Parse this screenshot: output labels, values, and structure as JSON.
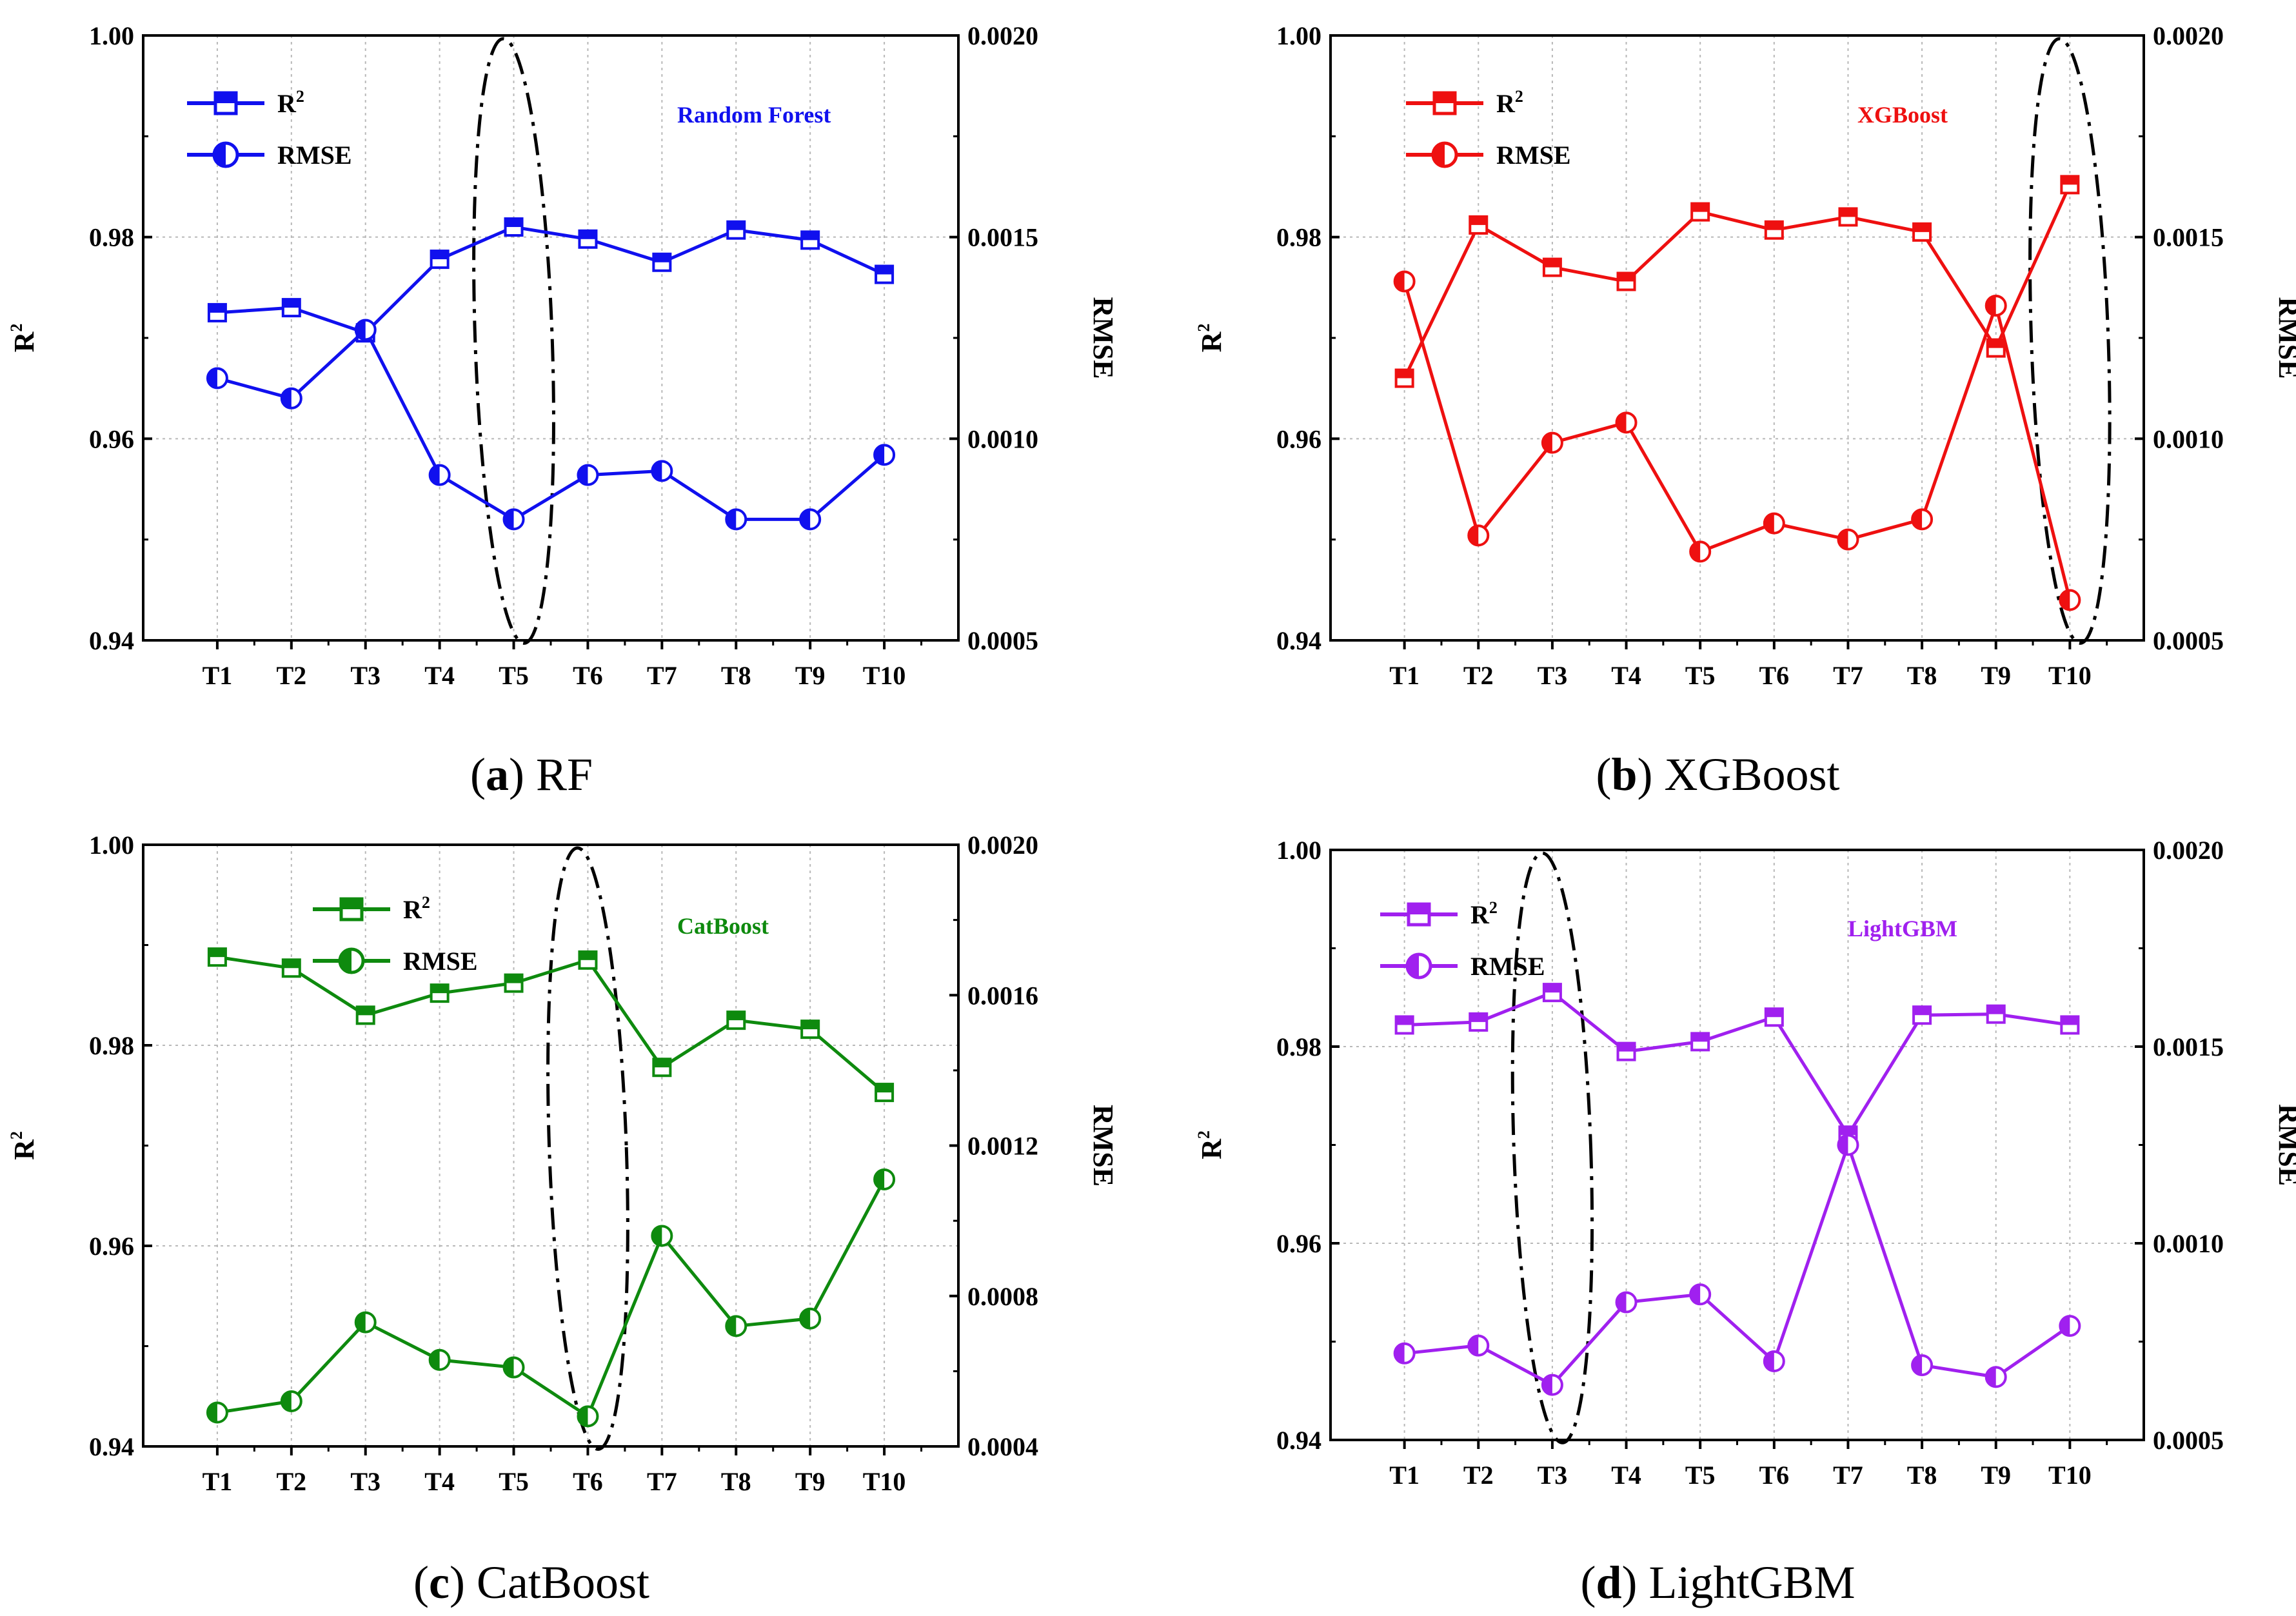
{
  "chart_data": [
    {
      "type": "line",
      "panel": "a",
      "title": "Random Forest",
      "caption_letter": "a",
      "caption_text": ") RF",
      "color": "#1010ee",
      "categories": [
        "T1",
        "T2",
        "T3",
        "T4",
        "T5",
        "T6",
        "T7",
        "T8",
        "T9",
        "T10"
      ],
      "series": [
        {
          "name": "R",
          "axis": "left",
          "marker": "square",
          "values": [
            0.9725,
            0.973,
            0.9705,
            0.9778,
            0.981,
            0.9798,
            0.9775,
            0.9807,
            0.9797,
            0.9763
          ]
        },
        {
          "name": "RMSE",
          "axis": "right",
          "marker": "circle",
          "values": [
            0.00115,
            0.0011,
            0.00127,
            0.00091,
            0.0008,
            0.00091,
            0.00092,
            0.0008,
            0.0008,
            0.00096
          ]
        }
      ],
      "ylabel": "R",
      "ylabel_sup": "2",
      "ylabel_right": "RMSE",
      "ylim": [
        0.94,
        1.0
      ],
      "yticks": [
        "0.94",
        "0.96",
        "0.98",
        "1.00"
      ],
      "ylim_right": [
        0.0005,
        0.002
      ],
      "yticks_right": [
        "0.0005",
        "0.0010",
        "0.0015",
        "0.0020"
      ],
      "legend": [
        "R",
        "RMSE"
      ],
      "legend_sup": "2",
      "highlight_index": 4
    },
    {
      "type": "line",
      "panel": "b",
      "title": "XGBoost",
      "caption_letter": "b",
      "caption_text": ") XGBoost",
      "color": "#ee1010",
      "categories": [
        "T1",
        "T2",
        "T3",
        "T4",
        "T5",
        "T6",
        "T7",
        "T8",
        "T9",
        "T10"
      ],
      "series": [
        {
          "name": "R",
          "axis": "left",
          "marker": "square",
          "values": [
            0.966,
            0.9812,
            0.977,
            0.9756,
            0.9825,
            0.9807,
            0.982,
            0.9805,
            0.969,
            0.9852
          ]
        },
        {
          "name": "RMSE",
          "axis": "right",
          "marker": "circle",
          "values": [
            0.00139,
            0.00076,
            0.00099,
            0.00104,
            0.00072,
            0.00079,
            0.00075,
            0.0008,
            0.00133,
            0.0006
          ]
        }
      ],
      "ylabel": "R",
      "ylabel_sup": "2",
      "ylabel_right": "RMSE",
      "ylim": [
        0.94,
        1.0
      ],
      "yticks": [
        "0.94",
        "0.96",
        "0.98",
        "1.00"
      ],
      "ylim_right": [
        0.0005,
        0.002
      ],
      "yticks_right": [
        "0.0005",
        "0.0010",
        "0.0015",
        "0.0020"
      ],
      "legend": [
        "R",
        "RMSE"
      ],
      "legend_sup": "2",
      "highlight_index": 9
    },
    {
      "type": "line",
      "panel": "c",
      "title": "CatBoost",
      "caption_letter": "c",
      "caption_text": ") CatBoost",
      "color": "#0e8a0e",
      "categories": [
        "T1",
        "T2",
        "T3",
        "T4",
        "T5",
        "T6",
        "T7",
        "T8",
        "T9",
        "T10"
      ],
      "series": [
        {
          "name": "R",
          "axis": "left",
          "marker": "square",
          "values": [
            0.9888,
            0.9877,
            0.983,
            0.9852,
            0.9862,
            0.9885,
            0.9778,
            0.9825,
            0.9816,
            0.9753
          ]
        },
        {
          "name": "RMSE",
          "axis": "right",
          "marker": "circle",
          "values": [
            0.00049,
            0.00052,
            0.00073,
            0.00063,
            0.00061,
            0.00048,
            0.00096,
            0.00072,
            0.00074,
            0.00111
          ]
        }
      ],
      "ylabel": "R",
      "ylabel_sup": "2",
      "ylabel_right": "RMSE",
      "ylim": [
        0.94,
        1.0
      ],
      "yticks": [
        "0.94",
        "0.96",
        "0.98",
        "1.00"
      ],
      "ylim_right": [
        0.0004,
        0.002
      ],
      "yticks_right": [
        "0.0004",
        "0.0008",
        "0.0012",
        "0.0016",
        "0.0020"
      ],
      "legend": [
        "R",
        "RMSE"
      ],
      "legend_sup": "2",
      "highlight_index": 5
    },
    {
      "type": "line",
      "panel": "d",
      "title": "LightGBM",
      "caption_letter": "d",
      "caption_text": ") LightGBM",
      "color": "#a020ef",
      "categories": [
        "T1",
        "T2",
        "T3",
        "T4",
        "T5",
        "T6",
        "T7",
        "T8",
        "T9",
        "T10"
      ],
      "series": [
        {
          "name": "R",
          "axis": "left",
          "marker": "square",
          "values": [
            0.9822,
            0.9825,
            0.9855,
            0.9795,
            0.9805,
            0.983,
            0.971,
            0.9832,
            0.9833,
            0.9822
          ]
        },
        {
          "name": "RMSE",
          "axis": "right",
          "marker": "circle",
          "values": [
            0.00072,
            0.00074,
            0.00064,
            0.00085,
            0.00087,
            0.0007,
            0.00125,
            0.00069,
            0.00066,
            0.00079
          ]
        }
      ],
      "ylabel": "R",
      "ylabel_sup": "2",
      "ylabel_right": "RMSE",
      "ylim": [
        0.94,
        1.0
      ],
      "yticks": [
        "0.94",
        "0.96",
        "0.98",
        "1.00"
      ],
      "ylim_right": [
        0.0005,
        0.002
      ],
      "yticks_right": [
        "0.0005",
        "0.0010",
        "0.0015",
        "0.0020"
      ],
      "legend": [
        "R",
        "RMSE"
      ],
      "legend_sup": "2",
      "highlight_index": 2
    }
  ]
}
